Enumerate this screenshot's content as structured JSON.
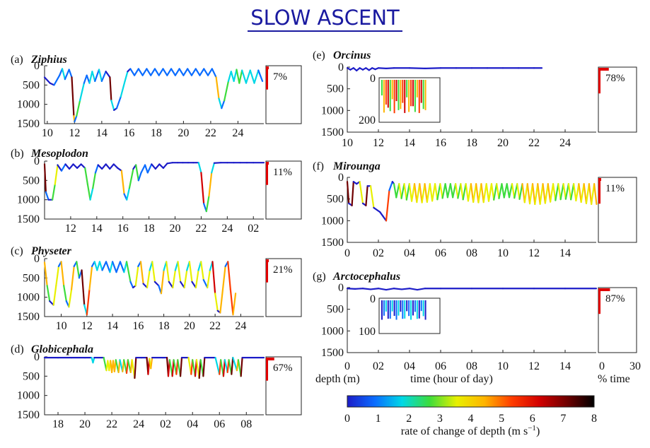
{
  "page": {
    "title": "SLOW ASCENT"
  },
  "colorbar": {
    "ticks": [
      "0",
      "1",
      "2",
      "3",
      "4",
      "5",
      "6",
      "7",
      "8"
    ],
    "label": "rate of change of depth (m s",
    "label_sup": "−1",
    "label_end": ")",
    "stops": [
      "#1c1cc8",
      "#0a6cff",
      "#00d8e6",
      "#3cdc3c",
      "#e8f000",
      "#ffb400",
      "#ff3c00",
      "#d20000",
      "#700000",
      "#000000"
    ]
  },
  "bottom_labels": {
    "depth": "depth (m)",
    "time": "time (hour of day)",
    "pct_time": "% time",
    "pct_ticks": [
      "0",
      "30"
    ]
  },
  "chart_data": [
    {
      "type": "line",
      "panel": "(a)",
      "name": "Ziphius",
      "percent": "7%",
      "xticks": [
        "10",
        "12",
        "14",
        "16",
        "18",
        "20",
        "22",
        "24"
      ],
      "xlim": [
        9.8,
        25.9
      ],
      "yticks": [
        "0",
        "500",
        "1000",
        "1500"
      ],
      "ylim": [
        0,
        1500
      ],
      "profile": [
        [
          9.8,
          300
        ],
        [
          10.2,
          450
        ],
        [
          10.5,
          500
        ],
        [
          10.9,
          250
        ],
        [
          11.1,
          80
        ],
        [
          11.3,
          350
        ],
        [
          11.6,
          100
        ],
        [
          11.8,
          300
        ],
        [
          11.95,
          1300
        ],
        [
          12.0,
          1450
        ],
        [
          12.15,
          1300
        ],
        [
          12.4,
          900
        ],
        [
          12.7,
          450
        ],
        [
          12.9,
          250
        ],
        [
          13.1,
          450
        ],
        [
          13.3,
          150
        ],
        [
          13.5,
          400
        ],
        [
          13.8,
          100
        ],
        [
          14.0,
          400
        ],
        [
          14.3,
          150
        ],
        [
          14.6,
          300
        ],
        [
          14.7,
          900
        ],
        [
          14.9,
          1150
        ],
        [
          15.1,
          1100
        ],
        [
          15.4,
          800
        ],
        [
          15.7,
          400
        ],
        [
          15.9,
          150
        ],
        [
          16.1,
          80
        ],
        [
          16.4,
          250
        ],
        [
          16.7,
          80
        ],
        [
          17.0,
          250
        ],
        [
          17.3,
          80
        ],
        [
          17.6,
          250
        ],
        [
          17.9,
          80
        ],
        [
          18.2,
          250
        ],
        [
          18.5,
          80
        ],
        [
          18.8,
          250
        ],
        [
          19.1,
          80
        ],
        [
          19.4,
          250
        ],
        [
          19.7,
          80
        ],
        [
          20.0,
          250
        ],
        [
          20.3,
          80
        ],
        [
          20.6,
          250
        ],
        [
          20.9,
          80
        ],
        [
          21.2,
          250
        ],
        [
          21.5,
          80
        ],
        [
          21.8,
          250
        ],
        [
          22.1,
          80
        ],
        [
          22.4,
          300
        ],
        [
          22.6,
          850
        ],
        [
          22.8,
          1100
        ],
        [
          23.0,
          900
        ],
        [
          23.3,
          400
        ],
        [
          23.5,
          150
        ],
        [
          23.7,
          400
        ],
        [
          23.9,
          100
        ],
        [
          24.1,
          450
        ],
        [
          24.3,
          120
        ],
        [
          24.6,
          450
        ],
        [
          24.9,
          120
        ],
        [
          25.2,
          450
        ],
        [
          25.5,
          120
        ],
        [
          25.8,
          400
        ]
      ]
    },
    {
      "type": "line",
      "panel": "(b)",
      "name": "Mesoplodon",
      "percent": "11%",
      "xticks": [
        "12",
        "14",
        "16",
        "18",
        "20",
        "22",
        "24",
        "02"
      ],
      "xlim": [
        10.0,
        26.8
      ],
      "yticks": [
        "0",
        "500",
        "1000",
        "1500"
      ],
      "ylim": [
        0,
        1500
      ],
      "profile": [
        [
          10.0,
          80
        ],
        [
          10.1,
          800
        ],
        [
          10.3,
          1000
        ],
        [
          10.6,
          1000
        ],
        [
          10.8,
          600
        ],
        [
          11.0,
          100
        ],
        [
          11.3,
          250
        ],
        [
          11.6,
          80
        ],
        [
          11.9,
          200
        ],
        [
          12.2,
          80
        ],
        [
          12.5,
          180
        ],
        [
          12.8,
          80
        ],
        [
          13.1,
          180
        ],
        [
          13.3,
          600
        ],
        [
          13.5,
          1000
        ],
        [
          13.7,
          700
        ],
        [
          13.9,
          300
        ],
        [
          14.1,
          100
        ],
        [
          14.4,
          200
        ],
        [
          14.7,
          80
        ],
        [
          15.0,
          200
        ],
        [
          15.3,
          80
        ],
        [
          15.6,
          180
        ],
        [
          15.9,
          250
        ],
        [
          16.1,
          850
        ],
        [
          16.3,
          1000
        ],
        [
          16.5,
          700
        ],
        [
          16.8,
          200
        ],
        [
          17.0,
          100
        ],
        [
          17.2,
          500
        ],
        [
          17.4,
          300
        ],
        [
          17.7,
          100
        ],
        [
          17.9,
          300
        ],
        [
          18.2,
          80
        ],
        [
          18.5,
          200
        ],
        [
          18.8,
          80
        ],
        [
          19.1,
          180
        ],
        [
          19.4,
          60
        ],
        [
          19.8,
          40
        ],
        [
          20.2,
          40
        ],
        [
          20.6,
          40
        ],
        [
          21.0,
          40
        ],
        [
          21.4,
          40
        ],
        [
          21.8,
          40
        ],
        [
          22.0,
          300
        ],
        [
          22.2,
          1100
        ],
        [
          22.4,
          1300
        ],
        [
          22.6,
          900
        ],
        [
          22.8,
          300
        ],
        [
          23.0,
          50
        ],
        [
          23.5,
          40
        ],
        [
          24.0,
          40
        ],
        [
          24.5,
          40
        ],
        [
          25.0,
          40
        ],
        [
          25.5,
          40
        ],
        [
          26.0,
          40
        ],
        [
          26.8,
          40
        ]
      ]
    },
    {
      "type": "line",
      "panel": "(c)",
      "name": "Physeter",
      "percent": "21%",
      "xticks": [
        "10",
        "12",
        "14",
        "16",
        "18",
        "20",
        "22",
        "24"
      ],
      "xlim": [
        8.7,
        25.8
      ],
      "yticks": [
        "0",
        "500",
        "1000",
        "1500"
      ],
      "ylim": [
        0,
        1500
      ],
      "profile": [
        [
          8.7,
          100
        ],
        [
          8.9,
          700
        ],
        [
          9.1,
          1100
        ],
        [
          9.4,
          1200
        ],
        [
          9.6,
          700
        ],
        [
          9.8,
          200
        ],
        [
          10.0,
          80
        ],
        [
          10.2,
          700
        ],
        [
          10.4,
          1100
        ],
        [
          10.6,
          1250
        ],
        [
          10.8,
          800
        ],
        [
          11.0,
          200
        ],
        [
          11.2,
          80
        ],
        [
          11.4,
          500
        ],
        [
          11.6,
          300
        ],
        [
          11.8,
          1200
        ],
        [
          12.0,
          1450
        ],
        [
          12.2,
          800
        ],
        [
          12.4,
          200
        ],
        [
          12.6,
          80
        ],
        [
          12.8,
          300
        ],
        [
          13.0,
          80
        ],
        [
          13.2,
          300
        ],
        [
          13.5,
          80
        ],
        [
          13.8,
          350
        ],
        [
          14.0,
          80
        ],
        [
          14.3,
          350
        ],
        [
          14.6,
          80
        ],
        [
          14.9,
          350
        ],
        [
          15.1,
          80
        ],
        [
          15.4,
          600
        ],
        [
          15.6,
          750
        ],
        [
          15.8,
          700
        ],
        [
          16.0,
          200
        ],
        [
          16.2,
          80
        ],
        [
          16.4,
          650
        ],
        [
          16.7,
          750
        ],
        [
          16.9,
          300
        ],
        [
          17.1,
          80
        ],
        [
          17.3,
          600
        ],
        [
          17.6,
          700
        ],
        [
          17.8,
          900
        ],
        [
          18.0,
          300
        ],
        [
          18.2,
          80
        ],
        [
          18.4,
          600
        ],
        [
          18.7,
          750
        ],
        [
          18.9,
          300
        ],
        [
          19.1,
          80
        ],
        [
          19.3,
          600
        ],
        [
          19.6,
          750
        ],
        [
          19.8,
          300
        ],
        [
          20.0,
          80
        ],
        [
          20.2,
          600
        ],
        [
          20.5,
          750
        ],
        [
          20.7,
          300
        ],
        [
          20.9,
          80
        ],
        [
          21.1,
          550
        ],
        [
          21.4,
          750
        ],
        [
          21.6,
          300
        ],
        [
          21.8,
          80
        ],
        [
          22.0,
          900
        ],
        [
          22.2,
          1350
        ],
        [
          22.4,
          1400
        ],
        [
          22.6,
          800
        ],
        [
          22.8,
          200
        ],
        [
          23.0,
          80
        ],
        [
          23.2,
          800
        ],
        [
          23.4,
          1450
        ],
        [
          23.6,
          900
        ]
      ]
    },
    {
      "type": "line",
      "panel": "(d)",
      "name": "Globicephala",
      "percent": "67%",
      "xticks": [
        "18",
        "20",
        "22",
        "24",
        "02",
        "04",
        "06",
        "08"
      ],
      "xlim": [
        17.0,
        33.3
      ],
      "yticks": [
        "0",
        "500",
        "1000",
        "1500"
      ],
      "ylim": [
        0,
        1500
      ],
      "profile": [
        [
          17.0,
          20
        ],
        [
          18.0,
          20
        ],
        [
          19.0,
          20
        ],
        [
          20.0,
          20
        ],
        [
          20.5,
          20
        ],
        [
          20.6,
          150
        ],
        [
          20.7,
          20
        ],
        [
          21.4,
          20
        ],
        [
          21.6,
          350
        ],
        [
          21.7,
          100
        ],
        [
          21.8,
          350
        ],
        [
          21.9,
          100
        ],
        [
          22.0,
          400
        ],
        [
          22.1,
          100
        ],
        [
          22.2,
          380
        ],
        [
          22.3,
          80
        ],
        [
          22.5,
          400
        ],
        [
          22.6,
          80
        ],
        [
          22.8,
          380
        ],
        [
          22.9,
          80
        ],
        [
          23.1,
          420
        ],
        [
          23.2,
          80
        ],
        [
          23.4,
          400
        ],
        [
          23.5,
          80
        ],
        [
          23.7,
          550
        ],
        [
          23.8,
          20
        ],
        [
          24.2,
          20
        ],
        [
          24.6,
          20
        ],
        [
          24.7,
          450
        ],
        [
          24.8,
          50
        ],
        [
          24.9,
          300
        ],
        [
          25.0,
          20
        ],
        [
          25.8,
          20
        ],
        [
          26.1,
          20
        ],
        [
          26.2,
          500
        ],
        [
          26.3,
          80
        ],
        [
          26.5,
          500
        ],
        [
          26.6,
          80
        ],
        [
          26.8,
          450
        ],
        [
          26.9,
          80
        ],
        [
          27.1,
          500
        ],
        [
          27.2,
          20
        ],
        [
          27.7,
          20
        ],
        [
          27.9,
          450
        ],
        [
          28.0,
          80
        ],
        [
          28.2,
          500
        ],
        [
          28.3,
          80
        ],
        [
          28.5,
          550
        ],
        [
          28.6,
          80
        ],
        [
          28.8,
          500
        ],
        [
          28.9,
          20
        ],
        [
          29.7,
          20
        ],
        [
          30.0,
          450
        ],
        [
          30.1,
          80
        ],
        [
          30.3,
          500
        ],
        [
          30.4,
          80
        ],
        [
          30.6,
          400
        ],
        [
          30.7,
          80
        ],
        [
          30.9,
          450
        ],
        [
          31.0,
          20
        ],
        [
          31.3,
          350
        ],
        [
          31.4,
          80
        ],
        [
          31.6,
          500
        ],
        [
          31.7,
          20
        ],
        [
          33.3,
          20
        ]
      ]
    },
    {
      "type": "line",
      "panel": "(e)",
      "name": "Orcinus",
      "percent": "78%",
      "xticks": [
        "10",
        "12",
        "14",
        "16",
        "18",
        "20",
        "22",
        "24"
      ],
      "xlim": [
        10.0,
        26.0
      ],
      "yticks": [
        "0",
        "500",
        "1000",
        "1500"
      ],
      "ylim": [
        0,
        1500
      ],
      "inset_yticks": [
        "0",
        "200"
      ],
      "profile": [
        [
          10.0,
          20
        ],
        [
          10.2,
          60
        ],
        [
          10.4,
          20
        ],
        [
          10.6,
          80
        ],
        [
          10.8,
          20
        ],
        [
          11.0,
          60
        ],
        [
          11.2,
          20
        ],
        [
          11.4,
          70
        ],
        [
          11.6,
          20
        ],
        [
          11.8,
          50
        ],
        [
          12.0,
          20
        ],
        [
          12.5,
          30
        ],
        [
          13.0,
          20
        ],
        [
          14.0,
          20
        ],
        [
          15.0,
          30
        ],
        [
          16.0,
          20
        ],
        [
          17.0,
          20
        ],
        [
          18.0,
          20
        ],
        [
          19.0,
          20
        ],
        [
          20.0,
          20
        ],
        [
          21.0,
          20
        ],
        [
          22.0,
          20
        ],
        [
          22.5,
          20
        ]
      ]
    },
    {
      "type": "line",
      "panel": "(f)",
      "name": "Mirounga",
      "percent": "11%",
      "xticks": [
        "0",
        "02",
        "04",
        "06",
        "08",
        "10",
        "12",
        "14"
      ],
      "xlim": [
        0.0,
        16.0
      ],
      "yticks": [
        "0",
        "500",
        "1000",
        "1500"
      ],
      "ylim": [
        0,
        1500
      ],
      "profile": [
        [
          0.0,
          100
        ],
        [
          0.1,
          600
        ],
        [
          0.3,
          650
        ],
        [
          0.4,
          100
        ],
        [
          0.6,
          150
        ],
        [
          0.8,
          100
        ],
        [
          1.0,
          600
        ],
        [
          1.2,
          650
        ],
        [
          1.3,
          200
        ],
        [
          1.5,
          200
        ],
        [
          1.7,
          700
        ],
        [
          1.9,
          750
        ],
        [
          2.1,
          800
        ],
        [
          2.3,
          900
        ],
        [
          2.5,
          1000
        ],
        [
          2.7,
          300
        ],
        [
          2.9,
          100
        ]
      ]
    },
    {
      "type": "line",
      "panel": "(g)",
      "name": "Arctocephalus",
      "percent": "87%",
      "xticks": [
        "0",
        "02",
        "04",
        "06",
        "08",
        "10",
        "12",
        "14"
      ],
      "xlim": [
        0.0,
        16.0
      ],
      "yticks": [
        "0",
        "500",
        "1000",
        "1500"
      ],
      "ylim": [
        0,
        1500
      ],
      "inset_yticks": [
        "0",
        "100"
      ],
      "profile": [
        [
          0.0,
          20
        ],
        [
          0.5,
          30
        ],
        [
          1.0,
          20
        ],
        [
          1.5,
          40
        ],
        [
          2.0,
          20
        ],
        [
          2.5,
          50
        ],
        [
          3.0,
          20
        ],
        [
          3.5,
          40
        ],
        [
          4.0,
          20
        ],
        [
          4.5,
          50
        ],
        [
          5.0,
          20
        ],
        [
          6.0,
          20
        ],
        [
          8.0,
          20
        ],
        [
          10.0,
          20
        ],
        [
          12.0,
          20
        ],
        [
          14.0,
          20
        ],
        [
          16.0,
          20
        ]
      ]
    }
  ]
}
